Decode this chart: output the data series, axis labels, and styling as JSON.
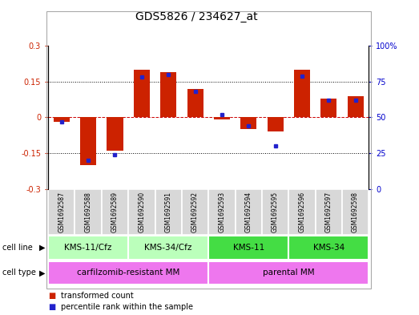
{
  "title": "GDS5826 / 234627_at",
  "samples": [
    "GSM1692587",
    "GSM1692588",
    "GSM1692589",
    "GSM1692590",
    "GSM1692591",
    "GSM1692592",
    "GSM1692593",
    "GSM1692594",
    "GSM1692595",
    "GSM1692596",
    "GSM1692597",
    "GSM1692598"
  ],
  "transformed_count": [
    -0.02,
    -0.2,
    -0.14,
    0.2,
    0.19,
    0.12,
    -0.01,
    -0.05,
    -0.06,
    0.2,
    0.08,
    0.09
  ],
  "percentile_rank": [
    47,
    20,
    24,
    78,
    80,
    68,
    52,
    44,
    30,
    79,
    62,
    62
  ],
  "cell_line_groups": [
    {
      "label": "KMS-11/Cfz",
      "start": 0,
      "end": 2,
      "color": "#bbffbb"
    },
    {
      "label": "KMS-34/Cfz",
      "start": 3,
      "end": 5,
      "color": "#bbffbb"
    },
    {
      "label": "KMS-11",
      "start": 6,
      "end": 8,
      "color": "#44dd44"
    },
    {
      "label": "KMS-34",
      "start": 9,
      "end": 11,
      "color": "#44dd44"
    }
  ],
  "cell_type_groups": [
    {
      "label": "carfilzomib-resistant MM",
      "start": 0,
      "end": 5,
      "color": "#ee77ee"
    },
    {
      "label": "parental MM",
      "start": 6,
      "end": 11,
      "color": "#ee77ee"
    }
  ],
  "bar_color": "#cc2200",
  "dot_color": "#2222cc",
  "ylim_left": [
    -0.3,
    0.3
  ],
  "ylim_right": [
    0,
    100
  ],
  "yticks_left": [
    -0.3,
    -0.15,
    0,
    0.15,
    0.3
  ],
  "ytick_labels_left": [
    "-0.3",
    "-0.15",
    "0",
    "0.15",
    "0.3"
  ],
  "yticks_right": [
    0,
    25,
    50,
    75,
    100
  ],
  "ytick_labels_right": [
    "0",
    "25",
    "50",
    "75",
    "100%"
  ],
  "hlines_dotted": [
    -0.15,
    0.15
  ],
  "hline_dashed": 0.0,
  "legend_items": [
    {
      "label": "transformed count",
      "color": "#cc2200"
    },
    {
      "label": "percentile rank within the sample",
      "color": "#2222cc"
    }
  ],
  "bar_width": 0.6,
  "background_color": "#ffffff",
  "plot_bg": "#ffffff",
  "title_fontsize": 10,
  "tick_fontsize": 7,
  "sample_fontsize": 5.5,
  "annot_fontsize": 7.5
}
